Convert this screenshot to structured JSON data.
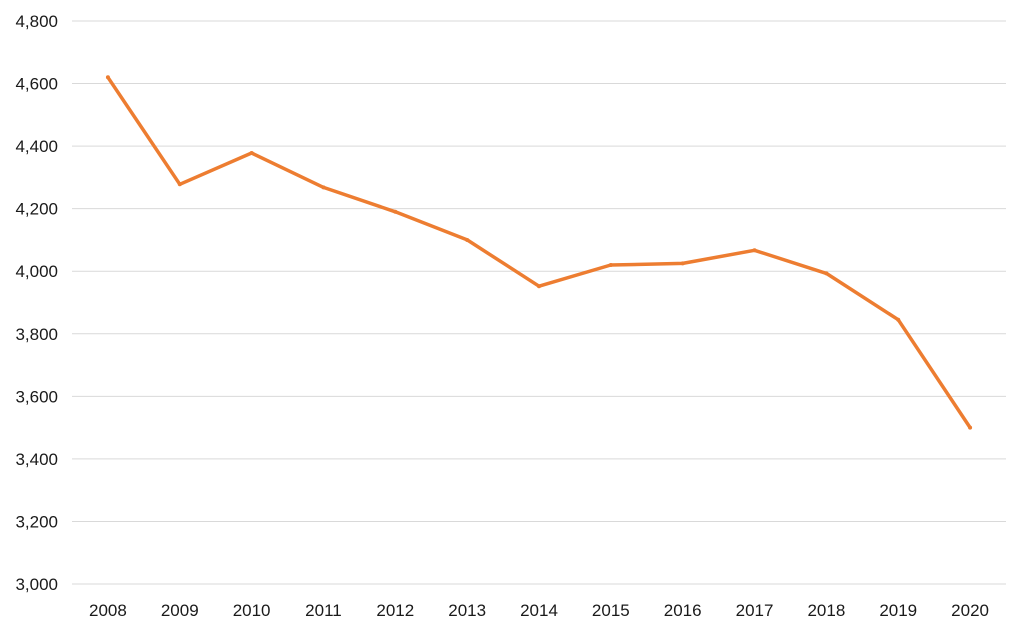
{
  "chart_data": {
    "type": "line",
    "title": "",
    "xlabel": "",
    "ylabel": "",
    "x": [
      "2008",
      "2009",
      "2010",
      "2011",
      "2012",
      "2013",
      "2014",
      "2015",
      "2016",
      "2017",
      "2018",
      "2019",
      "2020"
    ],
    "series": [
      {
        "values": [
          4620,
          4278,
          4378,
          4268,
          4190,
          4100,
          3952,
          4020,
          4025,
          4067,
          3993,
          3845,
          3500
        ],
        "color": "#ed7d31"
      }
    ],
    "ylim": [
      3000,
      4800
    ],
    "y_ticks": [
      "3,000",
      "3,200",
      "3,400",
      "3,600",
      "3,800",
      "4,000",
      "4,200",
      "4,400",
      "4,600",
      "4,800"
    ],
    "grid": "horizontal",
    "legend": "none"
  }
}
